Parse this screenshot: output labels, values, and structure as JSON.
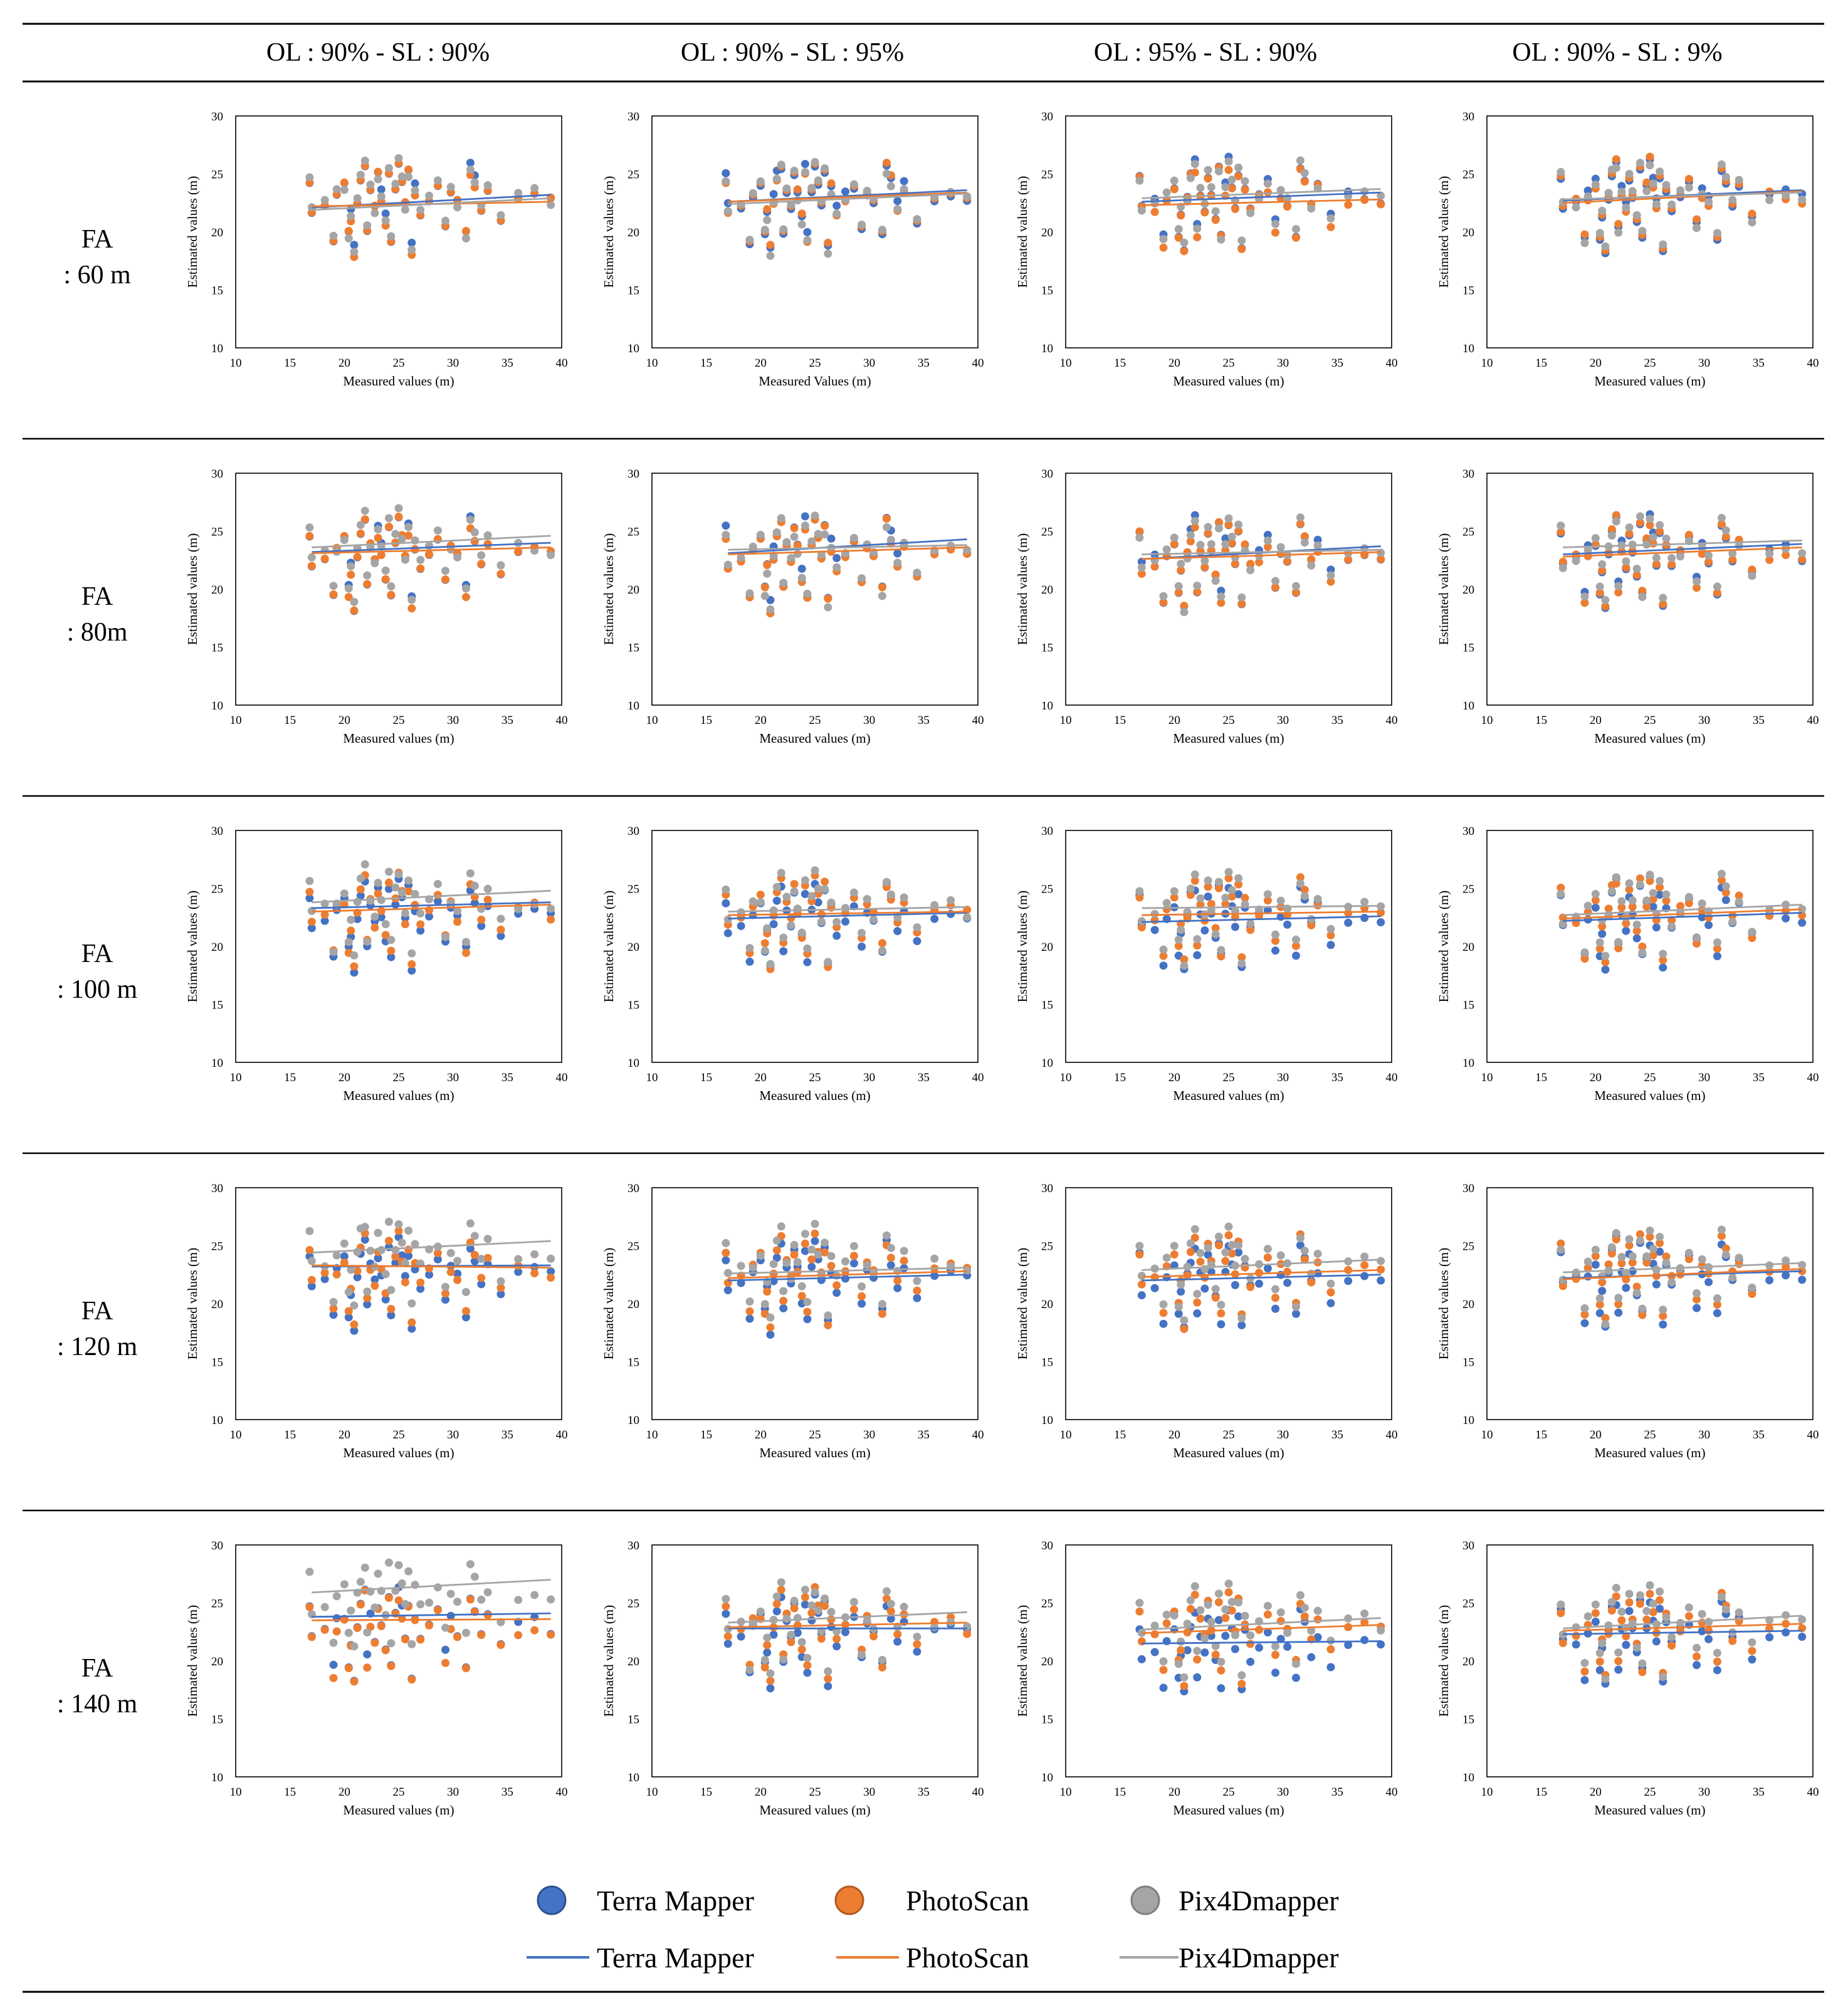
{
  "table": {
    "column_headers": [
      "OL : 90% - SL : 90%",
      "OL : 90% - SL : 95%",
      "OL : 95% - SL : 90%",
      "OL : 90% - SL : 9%"
    ],
    "row_headers": [
      {
        "line1": "FA",
        "line2": ": 60 m"
      },
      {
        "line1": "FA",
        "line2": ": 80m"
      },
      {
        "line1": "FA",
        "line2": ": 100 m"
      },
      {
        "line1": "FA",
        "line2": ": 120 m"
      },
      {
        "line1": "FA",
        "line2": ": 140 m"
      }
    ]
  },
  "axis": {
    "xlabel": "Measured values (m)",
    "xlabel_alt": "Measured Values (m)",
    "ylabel": "Estimated values (m)",
    "xticks": [
      "10",
      "15",
      "20",
      "25",
      "30",
      "35",
      "40"
    ],
    "yticks": [
      "10",
      "15",
      "20",
      "25",
      "30"
    ]
  },
  "legend": {
    "markers": [
      {
        "label": "Terra Mapper",
        "color": "#4472C4",
        "stroke": "#2F528F"
      },
      {
        "label": "PhotoScan",
        "color": "#ED7D31",
        "stroke": "#AE5A21"
      },
      {
        "label": "Pix4Dmapper",
        "color": "#A5A5A5",
        "stroke": "#7F7F7F"
      }
    ],
    "lines": [
      {
        "label": "Terra Mapper",
        "color": "#4472C4"
      },
      {
        "label": "PhotoScan",
        "color": "#ED7D31"
      },
      {
        "label": "Pix4Dmapper",
        "color": "#A5A5A5"
      }
    ]
  },
  "chart_data": {
    "type": "scatter",
    "description_grid": "5 flight altitudes (rows) x 4 overlap settings (columns)",
    "xlabel": "Measured values (m)",
    "ylabel": "Estimated values (m)",
    "xlim": [
      10,
      40
    ],
    "ylim": [
      10,
      30
    ],
    "measured_x": [
      16.8,
      17.0,
      18.2,
      19.0,
      19.3,
      20.0,
      20.4,
      20.6,
      20.9,
      21.2,
      21.5,
      21.9,
      22.1,
      22.4,
      22.8,
      23.1,
      23.4,
      23.8,
      24.1,
      24.3,
      24.7,
      25.0,
      25.3,
      25.6,
      25.9,
      26.2,
      26.5,
      27.0,
      27.8,
      28.6,
      29.3,
      29.8,
      30.4,
      31.2,
      31.6,
      32.0,
      32.6,
      33.2,
      34.4,
      36.0,
      37.5,
      39.0
    ],
    "base_estimated": [
      24.7,
      22.0,
      22.5,
      19.3,
      23.2,
      24.1,
      19.8,
      21.6,
      18.4,
      22.9,
      24.8,
      25.9,
      20.2,
      23.6,
      22.1,
      24.9,
      23.3,
      21.1,
      25.5,
      19.5,
      23.9,
      26.0,
      24.3,
      22.4,
      25.1,
      18.7,
      23.7,
      21.9,
      23.0,
      24.2,
      20.6,
      23.4,
      22.6,
      19.8,
      25.6,
      24.4,
      22.3,
      23.9,
      21.2,
      23.0,
      23.3,
      22.8
    ],
    "series_names": [
      "Terra Mapper",
      "PhotoScan",
      "Pix4Dmapper"
    ],
    "panels": [
      {
        "row": "FA : 60 m",
        "col": "OL : 90% - SL : 90%",
        "offsets": [
          0.0,
          -0.2,
          0.0
        ],
        "trendlines": [
          [
            22.1,
            23.2
          ],
          [
            22.2,
            22.6
          ],
          [
            21.9,
            22.9
          ]
        ]
      },
      {
        "row": "FA : 60 m",
        "col": "OL : 90% - SL : 95%",
        "offsets": [
          0.0,
          0.0,
          -0.1
        ],
        "trendlines": [
          [
            22.6,
            23.6
          ],
          [
            22.6,
            23.4
          ],
          [
            22.4,
            23.3
          ]
        ]
      },
      {
        "row": "FA : 60 m",
        "col": "OL : 95% - SL : 90%",
        "offsets": [
          0.0,
          -0.3,
          0.2
        ],
        "trendlines": [
          [
            22.6,
            23.4
          ],
          [
            22.3,
            22.8
          ],
          [
            22.9,
            23.7
          ]
        ]
      },
      {
        "row": "FA : 60 m",
        "col": "OL : 90% - SL : 9%",
        "offsets": [
          0.0,
          0.0,
          0.1
        ],
        "trendlines": [
          [
            22.7,
            23.6
          ],
          [
            22.5,
            23.5
          ],
          [
            22.8,
            23.4
          ]
        ]
      },
      {
        "row": "FA : 80m",
        "col": "OL : 90% - SL : 90%",
        "offsets": [
          0.2,
          0.0,
          0.5
        ],
        "trendlines": [
          [
            23.2,
            24.0
          ],
          [
            23.1,
            23.6
          ],
          [
            23.6,
            24.6
          ]
        ]
      },
      {
        "row": "FA : 80m",
        "col": "OL : 90% - SL : 95%",
        "offsets": [
          0.3,
          0.0,
          0.1
        ],
        "trendlines": [
          [
            23.1,
            24.3
          ],
          [
            23.0,
            23.6
          ],
          [
            23.4,
            23.8
          ]
        ]
      },
      {
        "row": "FA : 80m",
        "col": "OL : 95% - SL : 90%",
        "offsets": [
          0.0,
          -0.2,
          0.1
        ],
        "trendlines": [
          [
            22.6,
            23.7
          ],
          [
            22.6,
            23.2
          ],
          [
            23.0,
            23.4
          ]
        ]
      },
      {
        "row": "FA : 80m",
        "col": "OL : 90% - SL : 9%",
        "offsets": [
          0.1,
          0.0,
          0.3
        ],
        "trendlines": [
          [
            23.0,
            23.9
          ],
          [
            22.8,
            23.6
          ],
          [
            23.6,
            24.2
          ]
        ]
      },
      {
        "row": "FA : 100 m",
        "col": "OL : 90% - SL : 90%",
        "offsets": [
          -0.3,
          0.0,
          0.7
        ],
        "trendlines": [
          [
            23.3,
            23.8
          ],
          [
            23.0,
            23.6
          ],
          [
            23.8,
            24.8
          ]
        ]
      },
      {
        "row": "FA : 100 m",
        "col": "OL : 90% - SL : 95%",
        "offsets": [
          -0.5,
          0.0,
          0.2
        ],
        "trendlines": [
          [
            22.4,
            22.9
          ],
          [
            22.7,
            23.0
          ],
          [
            23.0,
            23.4
          ]
        ]
      },
      {
        "row": "FA : 100 m",
        "col": "OL : 95% - SL : 90%",
        "offsets": [
          -0.6,
          0.0,
          0.3
        ],
        "trendlines": [
          [
            22.1,
            22.6
          ],
          [
            22.7,
            23.0
          ],
          [
            23.3,
            23.5
          ]
        ]
      },
      {
        "row": "FA : 100 m",
        "col": "OL : 90% - SL : 9%",
        "offsets": [
          -0.4,
          0.0,
          0.3
        ],
        "trendlines": [
          [
            22.2,
            22.9
          ],
          [
            22.4,
            23.2
          ],
          [
            22.7,
            23.6
          ]
        ]
      },
      {
        "row": "FA : 120 m",
        "col": "OL : 90% - SL : 90%",
        "offsets": [
          -0.5,
          -0.2,
          1.2
        ],
        "trendlines": [
          [
            23.2,
            23.3
          ],
          [
            23.3,
            23.1
          ],
          [
            24.4,
            25.4
          ]
        ]
      },
      {
        "row": "FA : 120 m",
        "col": "OL : 90% - SL : 95%",
        "offsets": [
          -0.6,
          -0.2,
          0.4
        ],
        "trendlines": [
          [
            22.0,
            22.5
          ],
          [
            22.2,
            22.8
          ],
          [
            22.6,
            23.1
          ]
        ]
      },
      {
        "row": "FA : 120 m",
        "col": "OL : 95% - SL : 90%",
        "offsets": [
          -0.8,
          -0.1,
          0.4
        ],
        "trendlines": [
          [
            22.0,
            22.5
          ],
          [
            22.3,
            22.9
          ],
          [
            22.9,
            23.8
          ]
        ]
      },
      {
        "row": "FA : 120 m",
        "col": "OL : 90% - SL : 9%",
        "offsets": [
          -0.5,
          0.0,
          0.3
        ],
        "trendlines": [
          [
            22.2,
            22.8
          ],
          [
            22.1,
            23.0
          ],
          [
            22.7,
            23.5
          ]
        ]
      },
      {
        "row": "FA : 140 m",
        "col": "OL : 90% - SL : 90%",
        "offsets": [
          0.0,
          -0.3,
          2.5
        ],
        "trendlines": [
          [
            23.8,
            24.1
          ],
          [
            23.5,
            23.6
          ],
          [
            25.9,
            27.0
          ]
        ]
      },
      {
        "row": "FA : 140 m",
        "col": "OL : 90% - SL : 95%",
        "offsets": [
          -0.4,
          0.0,
          0.4
        ],
        "trendlines": [
          [
            22.8,
            22.8
          ],
          [
            22.9,
            23.3
          ],
          [
            23.3,
            24.2
          ]
        ]
      },
      {
        "row": "FA : 140 m",
        "col": "OL : 95% - SL : 90%",
        "offsets": [
          -1.5,
          -0.2,
          0.3
        ],
        "trendlines": [
          [
            21.5,
            21.7
          ],
          [
            22.4,
            23.1
          ],
          [
            22.7,
            23.7
          ]
        ]
      },
      {
        "row": "FA : 140 m",
        "col": "OL : 90% - SL : 9%",
        "offsets": [
          -0.6,
          -0.1,
          0.4
        ],
        "trendlines": [
          [
            22.3,
            22.6
          ],
          [
            22.6,
            23.2
          ],
          [
            22.8,
            23.9
          ]
        ]
      }
    ]
  }
}
